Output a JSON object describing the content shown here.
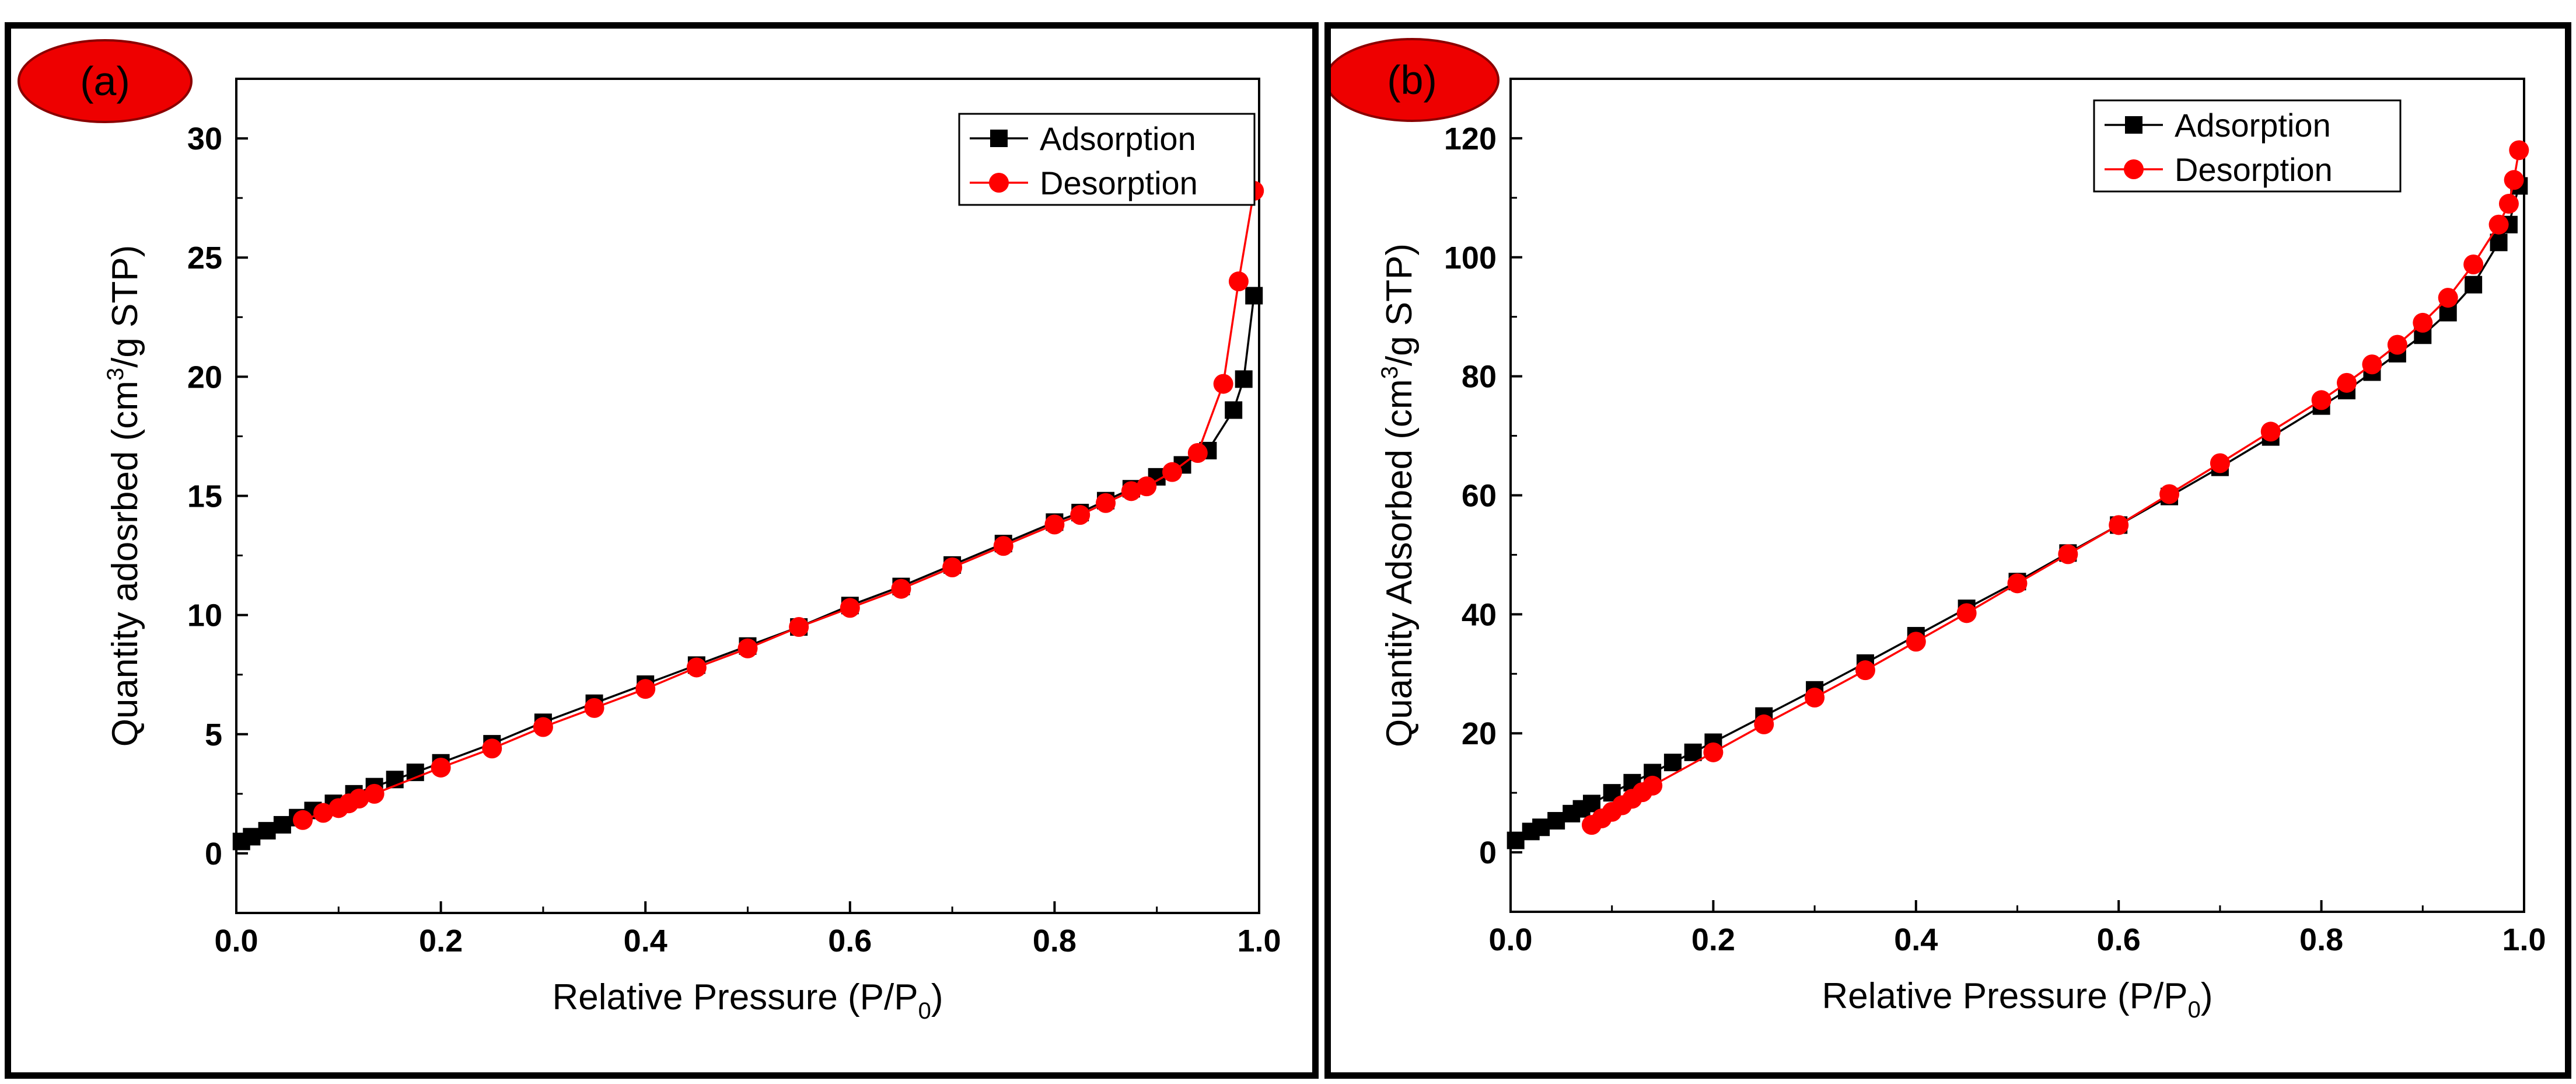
{
  "colors": {
    "adsorption": "#000000",
    "desorption": "#ff0000",
    "badge": "#ee0000"
  },
  "chart_data": [
    {
      "id": "a",
      "panel_label": "(a)",
      "type": "line",
      "xlabel": "Relative Pressure (P/P0)",
      "xlabel_main": "Relative Pressure (P/P",
      "xlabel_sub": "0",
      "xlabel_tail": ")",
      "ylabel": "Quantity adosrbed (cm3/g STP)",
      "ylabel_main": "Quantity adosrbed (cm",
      "ylabel_sup": "3",
      "ylabel_tail": "/g STP)",
      "xlim": [
        0.0,
        1.0
      ],
      "ylim": [
        -2.5,
        32.5
      ],
      "xticks": [
        0.0,
        0.2,
        0.4,
        0.6,
        0.8,
        1.0
      ],
      "xtick_labels": [
        "0.0",
        "0.2",
        "0.4",
        "0.6",
        "0.8",
        "1.0"
      ],
      "yticks": [
        0,
        5,
        10,
        15,
        20,
        25,
        30
      ],
      "ytick_labels": [
        "0",
        "5",
        "10",
        "15",
        "20",
        "25",
        "30"
      ],
      "legend_position": "top-right",
      "series": [
        {
          "name": "Adsorption",
          "marker": "square",
          "x": [
            0.005,
            0.015,
            0.03,
            0.045,
            0.06,
            0.075,
            0.095,
            0.115,
            0.135,
            0.155,
            0.175,
            0.2,
            0.25,
            0.3,
            0.35,
            0.4,
            0.45,
            0.5,
            0.55,
            0.6,
            0.65,
            0.7,
            0.75,
            0.8,
            0.825,
            0.85,
            0.875,
            0.9,
            0.925,
            0.95,
            0.975,
            0.985,
            0.995
          ],
          "y": [
            0.5,
            0.7,
            0.95,
            1.2,
            1.5,
            1.8,
            2.1,
            2.5,
            2.8,
            3.1,
            3.4,
            3.8,
            4.6,
            5.5,
            6.3,
            7.1,
            7.9,
            8.7,
            9.5,
            10.4,
            11.2,
            12.1,
            13.0,
            13.9,
            14.3,
            14.8,
            15.3,
            15.8,
            16.3,
            16.9,
            18.6,
            19.9,
            23.4
          ]
        },
        {
          "name": "Desorption",
          "marker": "circle",
          "x": [
            0.995,
            0.98,
            0.965,
            0.94,
            0.915,
            0.89,
            0.875,
            0.85,
            0.825,
            0.8,
            0.75,
            0.7,
            0.65,
            0.6,
            0.55,
            0.5,
            0.45,
            0.4,
            0.35,
            0.3,
            0.25,
            0.2,
            0.135,
            0.12,
            0.11,
            0.1,
            0.085,
            0.065
          ],
          "y": [
            27.8,
            24.0,
            19.7,
            16.8,
            16.0,
            15.4,
            15.2,
            14.7,
            14.2,
            13.8,
            12.9,
            12.0,
            11.1,
            10.3,
            9.5,
            8.6,
            7.8,
            6.9,
            6.1,
            5.3,
            4.4,
            3.6,
            2.5,
            2.3,
            2.1,
            1.9,
            1.7,
            1.4
          ]
        }
      ]
    },
    {
      "id": "b",
      "panel_label": "(b)",
      "type": "line",
      "xlabel": "Relative Pressure (P/P0)",
      "xlabel_main": "Relative Pressure (P/P",
      "xlabel_sub": "0",
      "xlabel_tail": ")",
      "ylabel": "Quantity Adsorbed (cm3/g STP)",
      "ylabel_main": "Quantity Adsorbed (cm",
      "ylabel_sup": "3",
      "ylabel_tail": "/g STP)",
      "xlim": [
        0.0,
        1.0
      ],
      "ylim": [
        -10,
        130
      ],
      "xticks": [
        0.0,
        0.2,
        0.4,
        0.6,
        0.8,
        1.0
      ],
      "xtick_labels": [
        "0.0",
        "0.2",
        "0.4",
        "0.6",
        "0.8",
        "1.0"
      ],
      "yticks": [
        0,
        20,
        40,
        60,
        80,
        100,
        120
      ],
      "ytick_labels": [
        "0",
        "20",
        "40",
        "60",
        "80",
        "100",
        "120"
      ],
      "legend_position": "top-right",
      "series": [
        {
          "name": "Adsorption",
          "marker": "square",
          "x": [
            0.005,
            0.02,
            0.03,
            0.045,
            0.06,
            0.07,
            0.08,
            0.1,
            0.12,
            0.14,
            0.16,
            0.18,
            0.2,
            0.25,
            0.3,
            0.35,
            0.4,
            0.45,
            0.5,
            0.55,
            0.6,
            0.65,
            0.7,
            0.75,
            0.8,
            0.825,
            0.85,
            0.875,
            0.9,
            0.925,
            0.95,
            0.975,
            0.985,
            0.995
          ],
          "y": [
            2,
            3.5,
            4.2,
            5.3,
            6.5,
            7.3,
            8.2,
            10.0,
            11.7,
            13.4,
            15.1,
            16.8,
            18.5,
            22.9,
            27.3,
            31.8,
            36.4,
            41.0,
            45.5,
            50.3,
            55.0,
            59.8,
            64.7,
            69.8,
            75.0,
            77.6,
            80.7,
            83.8,
            86.9,
            90.7,
            95.4,
            102.5,
            105.5,
            112.0
          ]
        },
        {
          "name": "Desorption",
          "marker": "circle",
          "x": [
            0.995,
            0.99,
            0.985,
            0.975,
            0.95,
            0.925,
            0.9,
            0.875,
            0.85,
            0.825,
            0.8,
            0.75,
            0.7,
            0.65,
            0.6,
            0.55,
            0.5,
            0.45,
            0.4,
            0.35,
            0.3,
            0.25,
            0.2,
            0.14,
            0.13,
            0.12,
            0.11,
            0.1,
            0.09,
            0.08
          ],
          "y": [
            118,
            113,
            109,
            105.5,
            98.8,
            93.2,
            89.0,
            85.3,
            82.0,
            78.9,
            76.0,
            70.7,
            65.4,
            60.2,
            55.0,
            50.1,
            45.2,
            40.2,
            35.4,
            30.6,
            26.0,
            21.5,
            16.8,
            11.2,
            10.1,
            9.0,
            7.9,
            6.8,
            5.7,
            4.6
          ]
        }
      ]
    }
  ]
}
